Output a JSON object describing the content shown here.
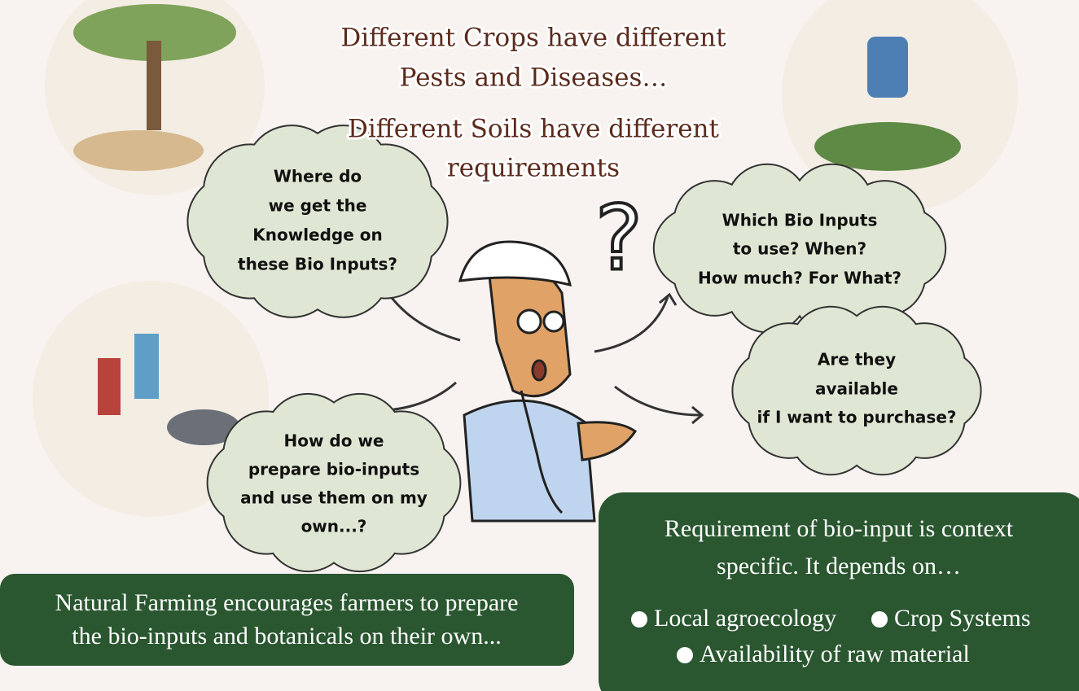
{
  "heading": {
    "lines": [
      "Different Crops have different",
      "Pests and Diseases…",
      "Different Soils have different",
      "requirements"
    ]
  },
  "question_mark": "?",
  "bubbles": [
    {
      "lines": [
        "Where do",
        "we get the",
        "Knowledge on",
        "these Bio Inputs?"
      ]
    },
    {
      "lines": [
        "Which Bio Inputs",
        "to use? When?",
        "How much? For What?"
      ]
    },
    {
      "lines": [
        "Are they",
        "available",
        "if I want to purchase?"
      ]
    },
    {
      "lines": [
        "How do we",
        "prepare bio-inputs",
        "and use them on my",
        "own...?"
      ]
    }
  ],
  "left_box": {
    "lines": [
      "Natural Farming encourages farmers to prepare",
      "the bio-inputs and botanicals on their own..."
    ]
  },
  "right_box": {
    "lines": [
      "Requirement of bio-input is context",
      "specific. It depends on…"
    ],
    "factors": [
      "Local agroecology",
      "Crop Systems",
      "Availability of raw material"
    ]
  }
}
